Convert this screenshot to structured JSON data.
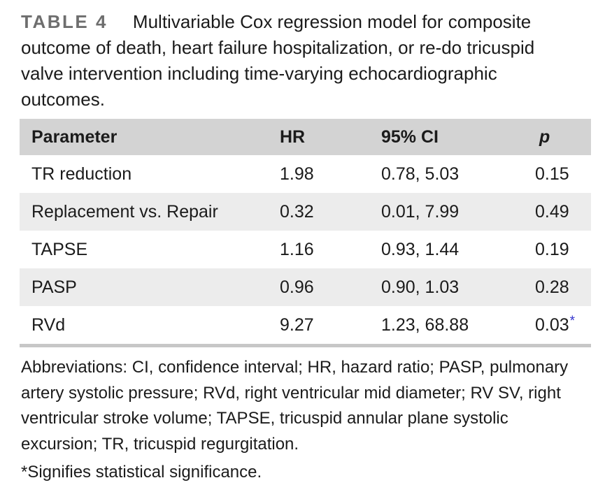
{
  "title": {
    "label": "TABLE 4",
    "lines": [
      "Multivariable Cox regression model for composite",
      "outcome of death, heart failure hospitalization, or re-do tricuspid",
      "valve intervention including time-varying echocardiographic",
      "outcomes."
    ]
  },
  "table": {
    "columns": [
      "Parameter",
      "HR",
      "95% CI",
      "p"
    ],
    "rows": [
      {
        "parameter": "TR reduction",
        "hr": "1.98",
        "ci": "0.78, 5.03",
        "p": "0.15",
        "significant": false
      },
      {
        "parameter": "Replacement vs. Repair",
        "hr": "0.32",
        "ci": "0.01, 7.99",
        "p": "0.49",
        "significant": false
      },
      {
        "parameter": "TAPSE",
        "hr": "1.16",
        "ci": "0.93, 1.44",
        "p": "0.19",
        "significant": false
      },
      {
        "parameter": "PASP",
        "hr": "0.96",
        "ci": "0.90, 1.03",
        "p": "0.28",
        "significant": false
      },
      {
        "parameter": "RVd",
        "hr": "9.27",
        "ci": "1.23, 68.88",
        "p": "0.03",
        "significant": true
      }
    ],
    "significance_marker": "*"
  },
  "footnotes": {
    "abbreviations_lines": [
      "Abbreviations: CI, confidence interval; HR, hazard ratio; PASP, pulmonary",
      "artery systolic pressure; RVd, right ventricular mid diameter; RV SV, right",
      "ventricular stroke volume; TAPSE, tricuspid annular plane systolic",
      "excursion; TR, tricuspid regurgitation."
    ],
    "significance": "*Signifies statistical significance."
  },
  "colors": {
    "header_bg": "#d3d3d3",
    "row_alt_bg": "#ececec",
    "rule": "#c7c7c7",
    "table_label": "#6e6e6e",
    "text": "#1b1b1b",
    "significance_marker": "#3232cd"
  }
}
